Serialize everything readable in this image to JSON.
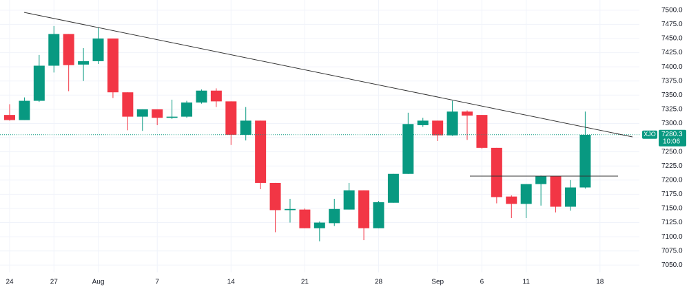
{
  "chart_data": {
    "type": "candlestick",
    "categories": [
      "24",
      null,
      null,
      "27",
      null,
      null,
      "Aug",
      null,
      null,
      null,
      "7",
      null,
      null,
      null,
      null,
      "14",
      null,
      null,
      null,
      null,
      "21",
      null,
      null,
      null,
      null,
      "28",
      null,
      null,
      null,
      "Sep",
      null,
      null,
      "6",
      null,
      null,
      "11",
      null,
      null,
      null,
      null,
      "18"
    ],
    "open": [
      7315,
      7306,
      7340,
      7402,
      7458,
      7404,
      7410,
      7450,
      7355,
      7312,
      7325,
      7310,
      7312,
      7337,
      7358,
      7339,
      7280,
      7305,
      7195,
      7147,
      7148,
      7115,
      7124,
      7148,
      7182,
      7115,
      7160,
      7211,
      7297,
      7305,
      7279,
      7321,
      7315,
      7257,
      7171,
      7158,
      7193,
      7207,
      7153,
      7187,
      null
    ],
    "high": [
      7334,
      7346,
      7421,
      7472,
      7458,
      7433,
      7470,
      7450,
      7355,
      7325,
      7325,
      7342,
      7340,
      7360,
      7362,
      7339,
      7329,
      7305,
      7195,
      7167,
      7150,
      7127,
      7167,
      7195,
      7182,
      7163,
      7211,
      7319,
      7310,
      7305,
      7340,
      7323,
      7315,
      7257,
      7173,
      7193,
      7208,
      7207,
      7200,
      7321,
      null
    ],
    "low": [
      7305,
      7306,
      7338,
      7390,
      7357,
      7375,
      7405,
      7345,
      7288,
      7287,
      7297,
      7308,
      7310,
      7335,
      7329,
      7262,
      7270,
      7184,
      7108,
      7125,
      7115,
      7092,
      7119,
      7148,
      7094,
      7115,
      7160,
      7211,
      7294,
      7269,
      7278,
      7271,
      7255,
      7159,
      7133,
      7133,
      7155,
      7143,
      7146,
      7185,
      null
    ],
    "close": [
      7306,
      7340,
      7402,
      7458,
      7403,
      7410,
      7450,
      7355,
      7312,
      7325,
      7310,
      7312,
      7337,
      7358,
      7339,
      7280,
      7305,
      7195,
      7147,
      7149,
      7115,
      7125,
      7149,
      7182,
      7115,
      7161,
      7211,
      7299,
      7305,
      7279,
      7321,
      7314,
      7257,
      7170,
      7158,
      7193,
      7207,
      7153,
      7187,
      7280,
      null
    ],
    "up_color": "#089981",
    "down_color": "#f23645",
    "ylim": [
      7037,
      7518
    ],
    "yticks": [
      {
        "value": 7050,
        "label": "7050.0"
      },
      {
        "value": 7075,
        "label": "7075.0"
      },
      {
        "value": 7100,
        "label": "7100.0"
      },
      {
        "value": 7125,
        "label": "7125.0"
      },
      {
        "value": 7150,
        "label": "7150.0"
      },
      {
        "value": 7175,
        "label": "7175.0"
      },
      {
        "value": 7200,
        "label": "7200.0"
      },
      {
        "value": 7225,
        "label": "7225.0"
      },
      {
        "value": 7250,
        "label": "7250.0"
      },
      {
        "value": 7275,
        "label": "7275.0"
      },
      {
        "value": 7300,
        "label": "7300.0"
      },
      {
        "value": 7325,
        "label": "7325.0"
      },
      {
        "value": 7350,
        "label": "7350.0"
      },
      {
        "value": 7375,
        "label": "7375.0"
      },
      {
        "value": 7400,
        "label": "7400.0"
      },
      {
        "value": 7425,
        "label": "7425.0"
      },
      {
        "value": 7450,
        "label": "7450.0"
      },
      {
        "value": 7475,
        "label": "7475.0"
      },
      {
        "value": 7500,
        "label": "7500.0"
      }
    ],
    "grid": true,
    "symbol": "XJO",
    "last_price": 7280.3,
    "countdown": "10:06"
  }
}
